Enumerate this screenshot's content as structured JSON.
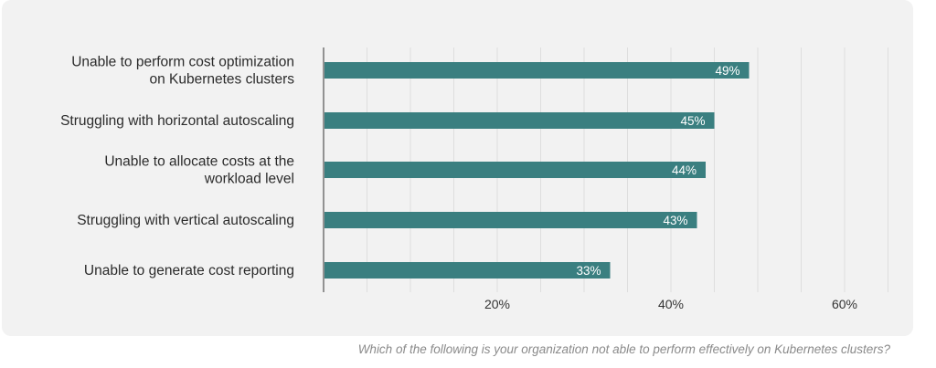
{
  "chart_data": {
    "type": "bar",
    "orientation": "horizontal",
    "categories": [
      "Unable to perform cost optimization\non Kubernetes clusters",
      "Struggling with horizontal autoscaling",
      "Unable to allocate costs at the\nworkload level",
      "Struggling with vertical autoscaling",
      "Unable to generate cost reporting"
    ],
    "values": [
      49,
      45,
      44,
      43,
      33
    ],
    "data_labels": [
      "49%",
      "45%",
      "44%",
      "43%",
      "33%"
    ],
    "xlim": [
      0,
      65
    ],
    "xticks": [
      20,
      40,
      60
    ],
    "xtick_labels": [
      "20%",
      "40%",
      "60%"
    ],
    "minor_grid_step": 5,
    "grid": true,
    "bar_color": "#3a7f80",
    "grid_color": "#dedede",
    "caption": "Which of the following is your organization not able to perform effectively on Kubernetes clusters?"
  }
}
